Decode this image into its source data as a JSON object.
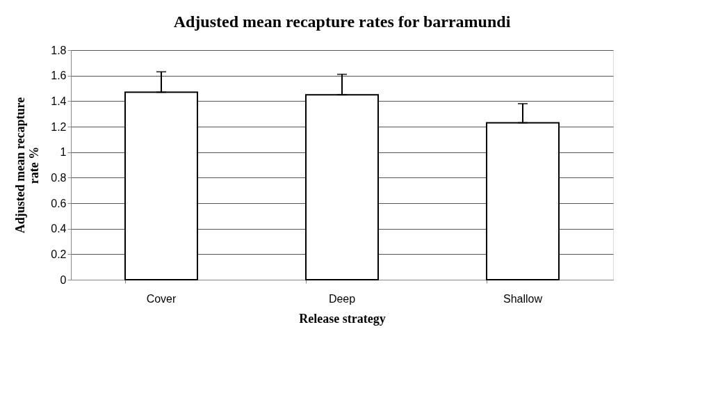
{
  "chart_data": {
    "type": "bar",
    "title": "Adjusted mean recapture rates for barramundi",
    "xlabel": "Release strategy",
    "ylabel": "Adjusted mean recapture rate %",
    "categories": [
      "Cover",
      "Deep",
      "Shallow"
    ],
    "values": [
      1.47,
      1.45,
      1.23
    ],
    "color": "#ffffff",
    "errors": [
      [
        1.47,
        1.63
      ],
      [
        1.45,
        1.61
      ],
      [
        1.23,
        1.38
      ]
    ],
    "ylim": [
      0,
      1.8
    ],
    "yticks": [
      0,
      0.2,
      0.4,
      0.6,
      0.8,
      1,
      1.2,
      1.4,
      1.6,
      1.8
    ],
    "grid": "y",
    "legend": false
  }
}
